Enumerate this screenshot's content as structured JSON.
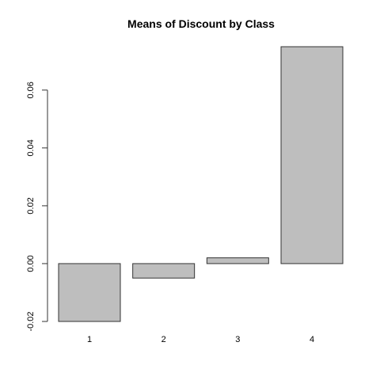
{
  "chart_data": {
    "type": "bar",
    "title": "Means of Discount by Class",
    "xlabel": "",
    "ylabel": "",
    "categories": [
      "1",
      "2",
      "3",
      "4"
    ],
    "values": [
      -0.02,
      -0.005,
      0.002,
      0.075
    ],
    "ylim": [
      -0.02,
      0.075
    ],
    "yticks": [
      -0.02,
      0.0,
      0.02,
      0.04,
      0.06
    ],
    "ytick_labels": [
      "-0.02",
      "0.00",
      "0.02",
      "0.04",
      "0.06"
    ],
    "grid": false,
    "legend": "none",
    "bar_fill": "#bebebe",
    "bar_stroke": "#333333",
    "axis_color": "#333333",
    "text_color": "#000000"
  }
}
